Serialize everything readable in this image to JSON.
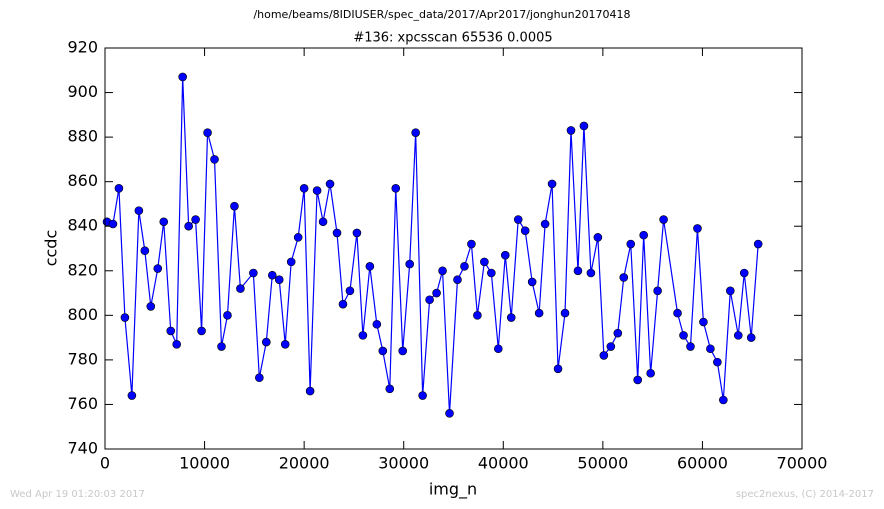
{
  "chart_data": {
    "type": "line",
    "suptitle": "/home/beams/8IDIUSER/spec_data/2017/Apr2017/jonghun20170418",
    "title": "#136: xpcsscan 65536 0.0005",
    "x_label": "img_n",
    "y_label": "ccdc",
    "annotations": [
      "Wed Apr 19 01:20:03 2017",
      "spec2nexus, (C) 2014-2017"
    ],
    "color": "#0000ff",
    "marker": "circle",
    "grid": false,
    "xlim": [
      0,
      70000
    ],
    "xticks": [
      0,
      10000,
      20000,
      30000,
      40000,
      50000,
      60000,
      70000
    ],
    "ylim": [
      740,
      920
    ],
    "yticks": [
      740,
      760,
      780,
      800,
      820,
      840,
      860,
      880,
      900,
      920
    ],
    "x": [
      200,
      800,
      1400,
      2000,
      2700,
      3400,
      4000,
      4600,
      5300,
      5900,
      6600,
      7200,
      7800,
      8400,
      9100,
      9700,
      10300,
      11000,
      11700,
      12300,
      13000,
      13600,
      14900,
      15500,
      16200,
      16800,
      17500,
      18100,
      18700,
      19400,
      20000,
      20600,
      21300,
      21900,
      22600,
      23300,
      23900,
      24600,
      25300,
      25900,
      26600,
      27300,
      27900,
      28600,
      29200,
      29900,
      30600,
      31200,
      31900,
      32600,
      33300,
      33900,
      34600,
      35400,
      36100,
      36800,
      37400,
      38100,
      38800,
      39500,
      40200,
      40800,
      41500,
      42200,
      42900,
      43600,
      44200,
      44900,
      45500,
      46200,
      46800,
      47500,
      48100,
      48800,
      49500,
      50100,
      50800,
      51500,
      52100,
      52800,
      53500,
      54100,
      54800,
      55500,
      56100,
      57500,
      58100,
      58800,
      59500,
      60100,
      60800,
      61500,
      62100,
      62800,
      63600,
      64200,
      64900,
      65600
    ],
    "values": [
      842,
      841,
      857,
      799,
      764,
      847,
      829,
      804,
      821,
      842,
      793,
      787,
      907,
      840,
      843,
      793,
      882,
      870,
      786,
      800,
      849,
      812,
      819,
      772,
      788,
      818,
      816,
      787,
      824,
      835,
      857,
      766,
      856,
      842,
      859,
      837,
      805,
      811,
      837,
      791,
      822,
      796,
      784,
      767,
      857,
      784,
      823,
      882,
      764,
      807,
      810,
      820,
      756,
      816,
      822,
      832,
      800,
      824,
      819,
      785,
      827,
      799,
      843,
      838,
      815,
      801,
      841,
      859,
      776,
      801,
      883,
      820,
      885,
      819,
      835,
      782,
      786,
      792,
      817,
      832,
      771,
      836,
      774,
      811,
      843,
      801,
      791,
      786,
      839,
      797,
      785,
      779,
      762,
      811,
      791,
      819,
      790,
      832
    ]
  }
}
